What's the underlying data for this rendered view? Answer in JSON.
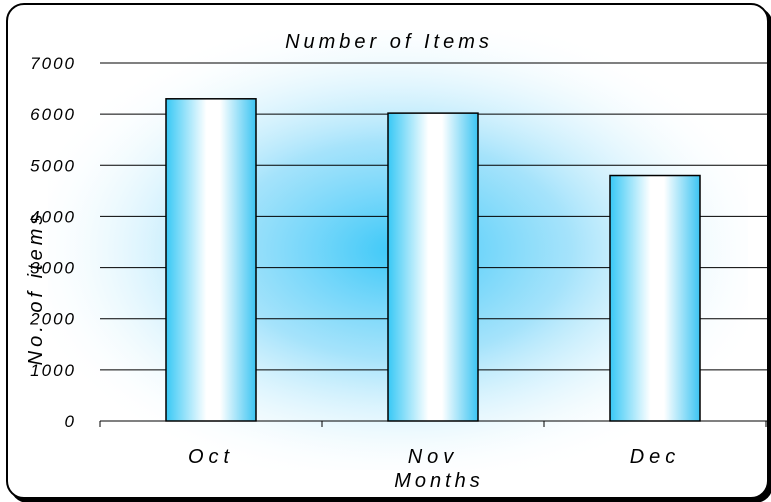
{
  "chart_data": {
    "type": "bar",
    "title": "Number of Items",
    "xlabel": "Months",
    "ylabel": "No. of items",
    "categories": [
      "Oct",
      "Nov",
      "Dec"
    ],
    "series": [
      {
        "values": [
          6300,
          6020,
          4800
        ]
      }
    ],
    "ylim": [
      0,
      7000
    ],
    "yticks": [
      0,
      1000,
      2000,
      3000,
      4000,
      5000,
      6000,
      7000
    ],
    "ytick_labels": [
      "0",
      "1000",
      "2000",
      "3000",
      "4000",
      "5000",
      "6000",
      "7000"
    ],
    "grid": true,
    "legend": "none",
    "colors": {
      "bar_edge": "#38c8f5",
      "bar_center": "#ffffff",
      "background_glow": "#3cc8f8",
      "gridline": "#000000"
    }
  }
}
